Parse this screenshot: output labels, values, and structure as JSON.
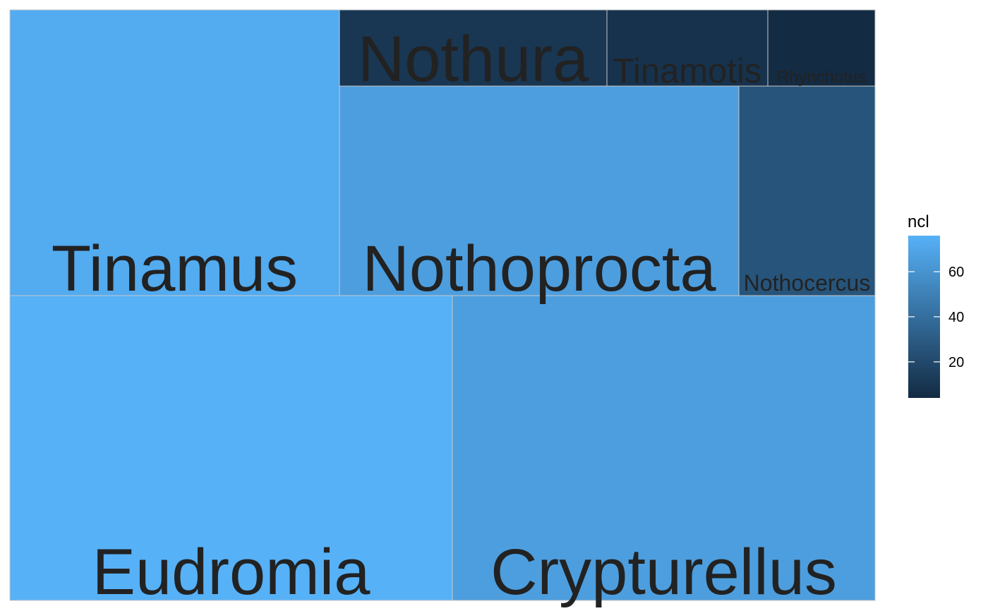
{
  "chart_data": {
    "type": "treemap",
    "value_field": "ncl",
    "colors": {
      "low": "#132B43",
      "high": "#56B1F7",
      "border": "#c8c8c8",
      "label": "#222222"
    },
    "tiles": [
      {
        "name": "Eudromia",
        "ncl": 76
      },
      {
        "name": "Crypturellus",
        "ncl": 66
      },
      {
        "name": "Tinamus",
        "ncl": 73
      },
      {
        "name": "Nothoprocta",
        "ncl": 66
      },
      {
        "name": "Nothocercus",
        "ncl": 26
      },
      {
        "name": "Nothura",
        "ncl": 10
      },
      {
        "name": "Tinamotis",
        "ncl": 8
      },
      {
        "name": "Rhynchotus",
        "ncl": 4
      }
    ],
    "legend": {
      "title": "ncl",
      "min": 4,
      "max": 76,
      "ticks": [
        20,
        40,
        60
      ],
      "position": "right"
    }
  }
}
